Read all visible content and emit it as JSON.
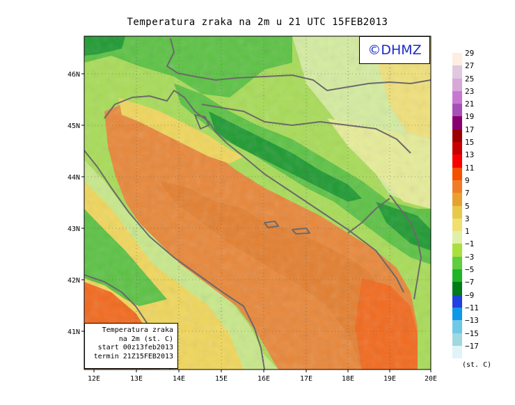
{
  "title": "Temperatura zraka na 2m u 21 UTC 15FEB2013",
  "logo": "©DHMZ",
  "info_box": {
    "line1": "Temperatura zraka",
    "line2": "na 2m (st. C)",
    "line3": "start 00z13feb2013",
    "line4": "termin 21Z15FEB2013"
  },
  "lon_ticks": [
    "12E",
    "13E",
    "14E",
    "15E",
    "16E",
    "17E",
    "18E",
    "19E",
    "20E"
  ],
  "lat_ticks": [
    "46N",
    "45N",
    "44N",
    "43N",
    "42N",
    "41N"
  ],
  "legend": {
    "labels": [
      "29",
      "27",
      "25",
      "23",
      "21",
      "19",
      "17",
      "15",
      "13",
      "11",
      "9",
      "7",
      "5",
      "3",
      "1",
      "−1",
      "−3",
      "−5",
      "−7",
      "−9",
      "−11",
      "−13",
      "−15",
      "−17"
    ],
    "colors": [
      "#fdeee0",
      "#e0c8e0",
      "#d8a8d8",
      "#c878d0",
      "#a850b8",
      "#880070",
      "#9c0000",
      "#c80000",
      "#f80000",
      "#f45000",
      "#f07c28",
      "#e8a030",
      "#e8c848",
      "#f0e070",
      "#e0f0a8",
      "#a8e040",
      "#60cc40",
      "#20b428",
      "#007c18",
      "#2040e0",
      "#1098e8",
      "#70c8e8",
      "#a0d8e0",
      "#e0f4f8"
    ],
    "units": "(st. C)"
  },
  "colors": {
    "sea_warm": "#e8873a",
    "sea_hot": "#f26a1e",
    "coast_yellow": "#f0d65c",
    "land_light": "#c8e88a",
    "land_mid": "#9ad44c",
    "land_green": "#5cc244",
    "mountain": "#1f9a32",
    "border": "#6a6a6a"
  }
}
